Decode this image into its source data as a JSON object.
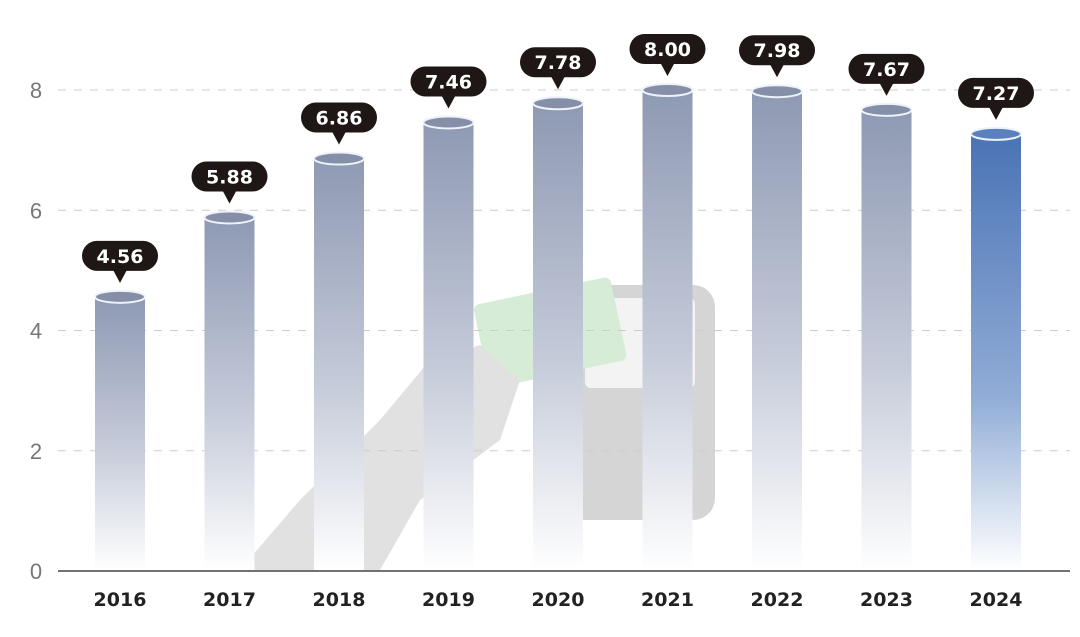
{
  "chart_data": {
    "type": "bar",
    "title": "",
    "xlabel": "",
    "ylabel": "",
    "categories": [
      "2016",
      "2017",
      "2018",
      "2019",
      "2020",
      "2021",
      "2022",
      "2023",
      "2024"
    ],
    "values": [
      4.56,
      5.88,
      6.86,
      7.46,
      7.78,
      8.0,
      7.98,
      7.67,
      7.27
    ],
    "value_labels": [
      "4.56",
      "5.88",
      "6.86",
      "7.46",
      "7.78",
      "8.00",
      "7.98",
      "7.67",
      "7.27"
    ],
    "ylim": [
      0,
      8
    ],
    "yticks": [
      "0",
      "2",
      "4",
      "6",
      "8"
    ],
    "grid": true,
    "legend": "none",
    "colors": {
      "bar": "#8e99b3",
      "highlight_bar": "#4a73b5",
      "label_bg": "#1e1715",
      "axis": "#444444"
    },
    "highlight_category": "2024",
    "background_illustration": "hand-with-card-and-payment-terminal"
  }
}
